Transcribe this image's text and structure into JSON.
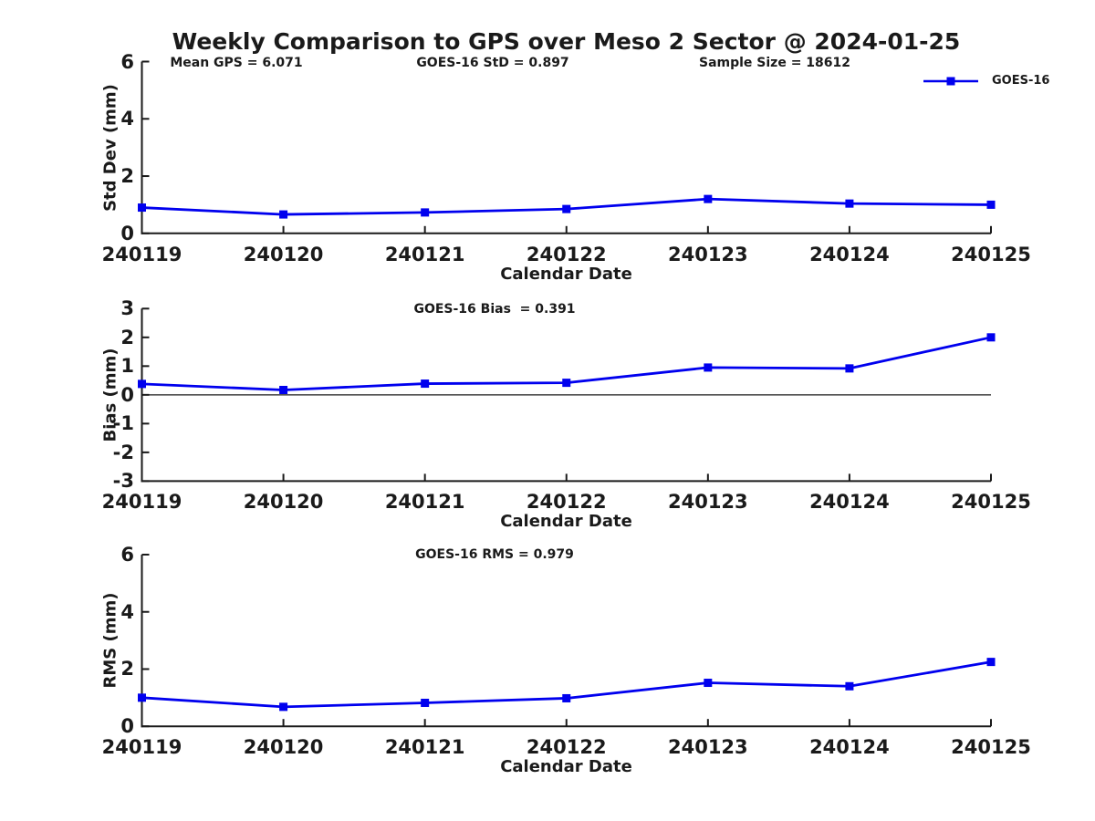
{
  "title": "Weekly Comparison to GPS over Meso 2 Sector @ 2024-01-25",
  "legend": {
    "label": "GOES-16",
    "color": "#0000EE"
  },
  "text_color": "#1a1a1a",
  "stats": {
    "mean_gps": 6.071,
    "goes16_std": 0.897,
    "sample_size": 18612,
    "goes16_bias": 0.391,
    "goes16_rms": 0.979
  },
  "chart_data": [
    {
      "type": "line",
      "categories": [
        "240119",
        "240120",
        "240121",
        "240122",
        "240123",
        "240124",
        "240125"
      ],
      "series": [
        {
          "name": "GOES-16",
          "values": [
            0.9,
            0.66,
            0.73,
            0.85,
            1.2,
            1.04,
            1.0
          ]
        }
      ],
      "annotations": [
        "Mean GPS = 6.071",
        "GOES-16 StD = 0.897",
        "Sample Size = 18612"
      ],
      "xlabel": "Calendar Date",
      "ylabel": "Std Dev (mm)",
      "ylim": [
        0,
        6
      ],
      "yticks": [
        0,
        2,
        4,
        6
      ],
      "zero_line": false,
      "grid": false,
      "legend_position": "outside-top-right",
      "marker": "square"
    },
    {
      "type": "line",
      "categories": [
        "240119",
        "240120",
        "240121",
        "240122",
        "240123",
        "240124",
        "240125"
      ],
      "series": [
        {
          "name": "GOES-16",
          "values": [
            0.38,
            0.17,
            0.39,
            0.42,
            0.95,
            0.92,
            2.0
          ]
        }
      ],
      "annotations": [
        "GOES-16 Bias  = 0.391"
      ],
      "xlabel": "Calendar Date",
      "ylabel": "Bias (mm)",
      "ylim": [
        -3,
        3
      ],
      "yticks": [
        -3,
        -2,
        -1,
        0,
        1,
        2,
        3
      ],
      "zero_line": true,
      "grid": false,
      "marker": "square"
    },
    {
      "type": "line",
      "categories": [
        "240119",
        "240120",
        "240121",
        "240122",
        "240123",
        "240124",
        "240125"
      ],
      "series": [
        {
          "name": "GOES-16",
          "values": [
            1.0,
            0.68,
            0.82,
            0.98,
            1.52,
            1.4,
            2.25
          ]
        }
      ],
      "annotations": [
        "GOES-16 RMS = 0.979"
      ],
      "xlabel": "Calendar Date",
      "ylabel": "RMS (mm)",
      "ylim": [
        0,
        6
      ],
      "yticks": [
        0,
        2,
        4,
        6
      ],
      "zero_line": false,
      "grid": false,
      "marker": "square"
    }
  ]
}
